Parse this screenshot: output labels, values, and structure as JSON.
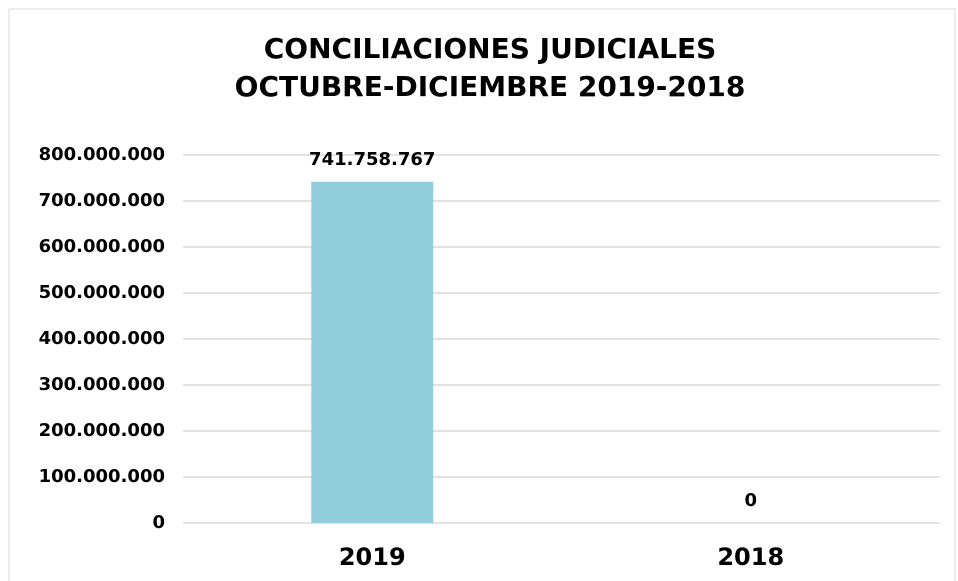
{
  "chart_data": {
    "type": "bar",
    "title_lines": [
      "CONCILIACIONES JUDICIALES",
      "OCTUBRE-DICIEMBRE 2019-2018"
    ],
    "categories": [
      "2019",
      "2018"
    ],
    "values": [
      741758767,
      0
    ],
    "value_labels": [
      "741.758.767",
      "0"
    ],
    "color": "#92cddc",
    "ylim": [
      0,
      800000000
    ],
    "yticks": [
      0,
      {
        "value": 100000000,
        "label": "100.000.000"
      },
      {
        "value": 200000000,
        "label": "200.000.000"
      },
      {
        "value": 300000000,
        "label": "300.000.000"
      },
      {
        "value": 400000000,
        "label": "400.000.000"
      },
      {
        "value": 500000000,
        "label": "500.000.000"
      },
      {
        "value": 600000000,
        "label": "600.000.000"
      },
      {
        "value": 700000000,
        "label": "700.000.000"
      },
      {
        "value": 800000000,
        "label": "800.000.000"
      }
    ],
    "grid": true
  }
}
